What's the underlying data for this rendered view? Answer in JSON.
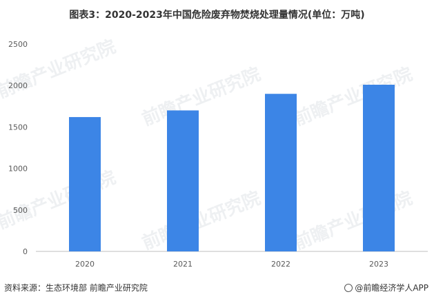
{
  "title": "图表3：2020-2023年中国危险废弃物焚烧处理量情况(单位：万吨)",
  "source": "资料来源：生态环境部 前瞻产业研究院",
  "brand": "@前瞻经济学人APP",
  "watermark": "前瞻产业研究院",
  "colors": {
    "bar": "#3c85e6",
    "axis": "#bfbfbf",
    "text": "#595959"
  },
  "chart_data": {
    "type": "bar",
    "categories": [
      "2020",
      "2021",
      "2022",
      "2023"
    ],
    "values": [
      1620,
      1700,
      1900,
      2010
    ],
    "ylim": [
      0,
      2500
    ],
    "yticks": [
      0,
      500,
      1000,
      1500,
      2000,
      2500
    ],
    "grid": false,
    "legend": "none"
  }
}
